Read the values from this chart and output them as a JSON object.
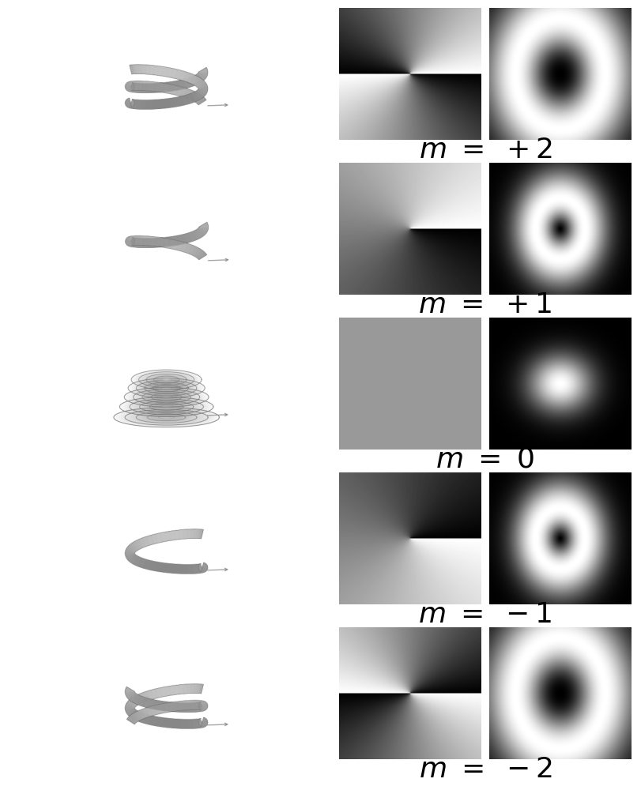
{
  "modes": [
    2,
    1,
    0,
    -1,
    -2
  ],
  "labels": [
    "+2",
    "+1",
    "0",
    "-1",
    "-2"
  ],
  "background_color": "#ffffff",
  "text_color": "#000000",
  "label_fontsize": 26,
  "phase_size": 200,
  "intensity_size": 200,
  "fig_width": 8.11,
  "fig_height": 10.0,
  "dpi": 100
}
